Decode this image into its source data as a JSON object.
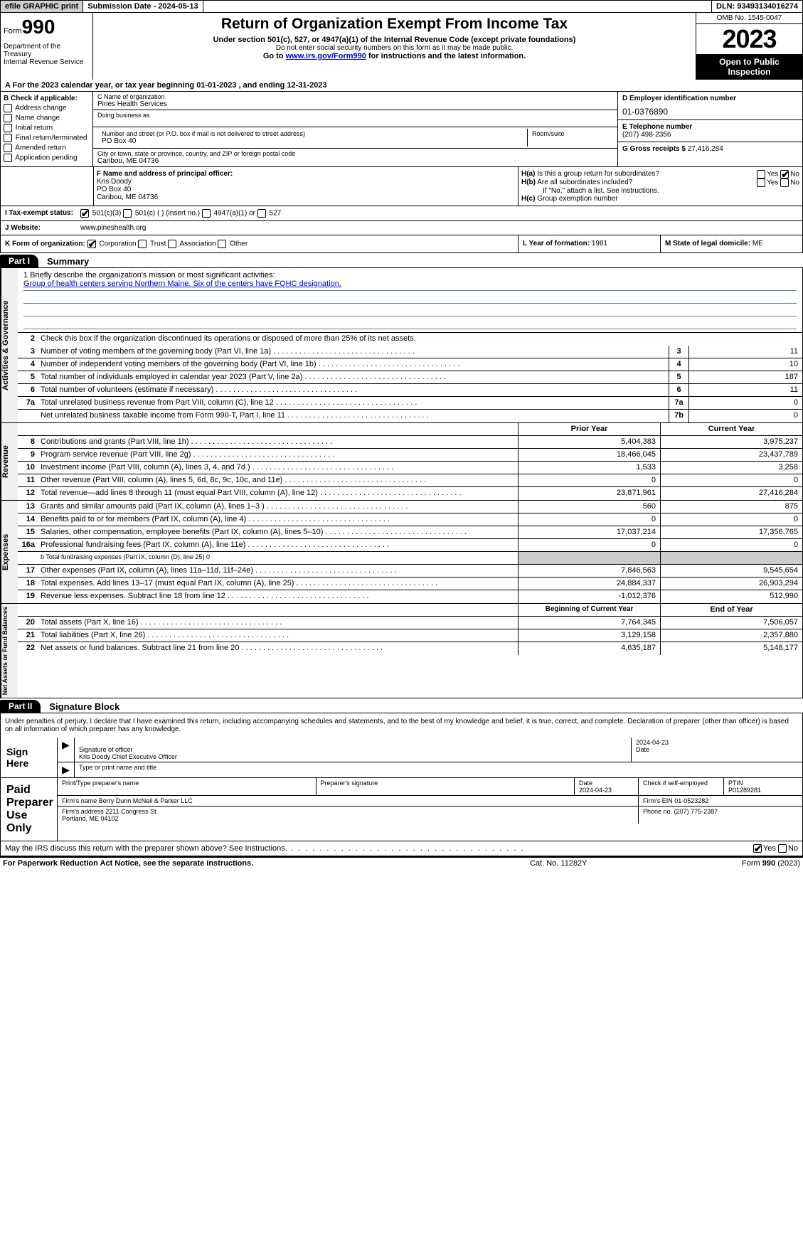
{
  "topbar": {
    "efile": "efile GRAPHIC print",
    "submission": "Submission Date - 2024-05-13",
    "dln": "DLN: 93493134016274"
  },
  "header": {
    "form_label": "Form",
    "form_number": "990",
    "title": "Return of Organization Exempt From Income Tax",
    "sub1": "Under section 501(c), 527, or 4947(a)(1) of the Internal Revenue Code (except private foundations)",
    "sub2": "Do not enter social security numbers on this form as it may be made public.",
    "goto_prefix": "Go to ",
    "goto_link": "www.irs.gov/Form990",
    "goto_suffix": " for instructions and the latest information.",
    "dept": "Department of the Treasury\nInternal Revenue Service",
    "omb": "OMB No. 1545-0047",
    "year": "2023",
    "open_public": "Open to Public Inspection"
  },
  "tax_year": "A For the 2023 calendar year, or tax year beginning 01-01-2023    , and ending 12-31-2023",
  "section_b": {
    "label": "B Check if applicable:",
    "opts": [
      "Address change",
      "Name change",
      "Initial return",
      "Final return/terminated",
      "Amended return",
      "Application pending"
    ]
  },
  "section_c": {
    "c_label": "C Name of organization",
    "org": "Pines Health Services",
    "dba_label": "Doing business as",
    "street_label": "Number and street (or P.O. box if mail is not delivered to street address)",
    "room_label": "Room/suite",
    "street": "PO Box 40",
    "city_label": "City or town, state or province, country, and ZIP or foreign postal code",
    "city": "Caribou, ME  04736"
  },
  "section_d": {
    "d_label": "D Employer identification number",
    "ein": "01-0376890",
    "e_label": "E Telephone number",
    "phone": "(207) 498-2356",
    "g_label": "G Gross receipts $",
    "gross": "27,416,284"
  },
  "section_f": {
    "f_label": "F  Name and address of principal officer:",
    "name": "Kris Doody",
    "addr1": "PO Box 40",
    "addr2": "Caribou, ME  04736"
  },
  "section_h": {
    "ha_label": "H(a)  Is this a group return for subordinates?",
    "hb_label": "H(b)  Are all subordinates included?",
    "hb_note": "If \"No,\" attach a list. See instructions.",
    "hc_label": "H(c)  Group exemption number"
  },
  "section_i": {
    "label": "I   Tax-exempt status:",
    "opt1": "501(c)(3)",
    "opt2": "501(c) (  ) (insert no.)",
    "opt3": "4947(a)(1) or",
    "opt4": "527"
  },
  "section_j": {
    "label": "J   Website:",
    "val": "www.pineshealth.org"
  },
  "section_k": {
    "label": "K Form of organization:",
    "opts": [
      "Corporation",
      "Trust",
      "Association",
      "Other"
    ],
    "l_label": "L Year of formation:",
    "l_val": "1981",
    "m_label": "M State of legal domicile:",
    "m_val": "ME"
  },
  "part1": {
    "label": "Part I",
    "title": "Summary",
    "sidebars": [
      "Activities & Governance",
      "Revenue",
      "Expenses",
      "Net Assets or Fund Balances"
    ],
    "mission_label": "1   Briefly describe the organization's mission or most significant activities:",
    "mission": "Group of health centers serving Northern Maine. Six of the centers have FQHC designation.",
    "line2": "Check this box       if the organization discontinued its operations or disposed of more than 25% of its net assets.",
    "gov_lines": [
      {
        "n": "3",
        "d": "Number of voting members of the governing body (Part VI, line 1a)",
        "box": "3",
        "v": "11"
      },
      {
        "n": "4",
        "d": "Number of independent voting members of the governing body (Part VI, line 1b)",
        "box": "4",
        "v": "10"
      },
      {
        "n": "5",
        "d": "Total number of individuals employed in calendar year 2023 (Part V, line 2a)",
        "box": "5",
        "v": "187"
      },
      {
        "n": "6",
        "d": "Total number of volunteers (estimate if necessary)",
        "box": "6",
        "v": "11"
      },
      {
        "n": "7a",
        "d": "Total unrelated business revenue from Part VIII, column (C), line 12",
        "box": "7a",
        "v": "0"
      },
      {
        "n": "",
        "d": "Net unrelated business taxable income from Form 990-T, Part I, line 11",
        "box": "7b",
        "v": "0"
      }
    ],
    "prior_header": "Prior Year",
    "current_header": "Current Year",
    "rev_lines": [
      {
        "n": "8",
        "d": "Contributions and grants (Part VIII, line 1h)",
        "p": "5,404,383",
        "c": "3,975,237"
      },
      {
        "n": "9",
        "d": "Program service revenue (Part VIII, line 2g)",
        "p": "18,466,045",
        "c": "23,437,789"
      },
      {
        "n": "10",
        "d": "Investment income (Part VIII, column (A), lines 3, 4, and 7d )",
        "p": "1,533",
        "c": "3,258"
      },
      {
        "n": "11",
        "d": "Other revenue (Part VIII, column (A), lines 5, 6d, 8c, 9c, 10c, and 11e)",
        "p": "0",
        "c": "0"
      },
      {
        "n": "12",
        "d": "Total revenue—add lines 8 through 11 (must equal Part VIII, column (A), line 12)",
        "p": "23,871,961",
        "c": "27,416,284"
      }
    ],
    "exp_lines": [
      {
        "n": "13",
        "d": "Grants and similar amounts paid (Part IX, column (A), lines 1–3 )",
        "p": "560",
        "c": "875"
      },
      {
        "n": "14",
        "d": "Benefits paid to or for members (Part IX, column (A), line 4)",
        "p": "0",
        "c": "0"
      },
      {
        "n": "15",
        "d": "Salaries, other compensation, employee benefits (Part IX, column (A), lines 5–10)",
        "p": "17,037,214",
        "c": "17,356,765"
      },
      {
        "n": "16a",
        "d": "Professional fundraising fees (Part IX, column (A), line 11e)",
        "p": "0",
        "c": "0"
      }
    ],
    "line_b": "b   Total fundraising expenses (Part IX, column (D), line 25) 0",
    "exp_lines2": [
      {
        "n": "17",
        "d": "Other expenses (Part IX, column (A), lines 11a–11d, 11f–24e)",
        "p": "7,846,563",
        "c": "9,545,654"
      },
      {
        "n": "18",
        "d": "Total expenses. Add lines 13–17 (must equal Part IX, column (A), line 25)",
        "p": "24,884,337",
        "c": "26,903,294"
      },
      {
        "n": "19",
        "d": "Revenue less expenses. Subtract line 18 from line 12",
        "p": "-1,012,376",
        "c": "512,990"
      }
    ],
    "begin_header": "Beginning of Current Year",
    "end_header": "End of Year",
    "net_lines": [
      {
        "n": "20",
        "d": "Total assets (Part X, line 16)",
        "p": "7,764,345",
        "c": "7,506,057"
      },
      {
        "n": "21",
        "d": "Total liabilities (Part X, line 26)",
        "p": "3,129,158",
        "c": "2,357,880"
      },
      {
        "n": "22",
        "d": "Net assets or fund balances. Subtract line 21 from line 20",
        "p": "4,635,187",
        "c": "5,148,177"
      }
    ]
  },
  "part2": {
    "label": "Part II",
    "title": "Signature Block",
    "perjury": "Under penalties of perjury, I declare that I have examined this return, including accompanying schedules and statements, and to the best of my knowledge and belief, it is true, correct, and complete. Declaration of preparer (other than officer) is based on all information of which preparer has any knowledge.",
    "sign_here": "Sign Here",
    "sig_officer_label": "Signature of officer",
    "sig_officer": "Kris Doody  Chief Executive Officer",
    "sig_type_label": "Type or print name and title",
    "sig_date_label": "Date",
    "sig_date": "2024-04-23",
    "paid_label": "Paid Preparer Use Only",
    "prep_name_label": "Print/Type preparer's name",
    "prep_sig_label": "Preparer's signature",
    "prep_date_label": "Date",
    "prep_date": "2024-04-23",
    "check_self": "Check         if self-employed",
    "ptin_label": "PTIN",
    "ptin": "P01289281",
    "firm_name_label": "Firm's name",
    "firm_name": "Berry Dunn McNeil & Parker LLC",
    "firm_ein_label": "Firm's EIN",
    "firm_ein": "01-0523282",
    "firm_addr_label": "Firm's address",
    "firm_addr1": "2211 Congress St",
    "firm_addr2": "Portland, ME  04102",
    "phone_label": "Phone no.",
    "phone": "(207) 775-2387"
  },
  "discuss": "May the IRS discuss this return with the preparer shown above? See Instructions.",
  "footer": {
    "left": "For Paperwork Reduction Act Notice, see the separate instructions.",
    "mid": "Cat. No. 11282Y",
    "right_prefix": "Form ",
    "right_bold": "990",
    "right_suffix": " (2023)"
  }
}
